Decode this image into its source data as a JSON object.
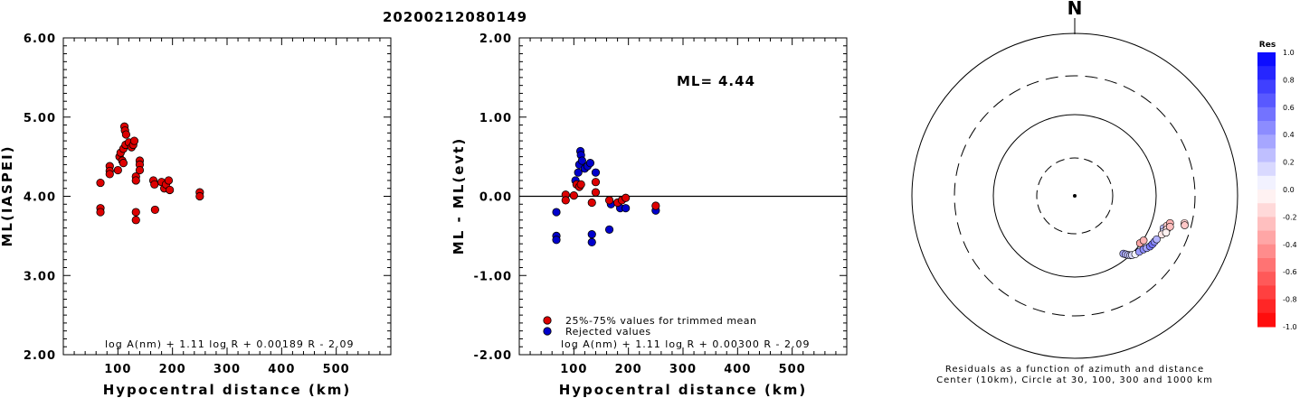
{
  "event_id": "20200212080149",
  "chart_data": [
    {
      "type": "scatter",
      "ylabel": "ML(IASPEI)",
      "xlabel": "Hypocentral distance (km)",
      "xlim": [
        0,
        600
      ],
      "ylim": [
        2.0,
        6.0
      ],
      "xticks": [
        "100",
        "200",
        "300",
        "400",
        "500"
      ],
      "yticks": [
        "2.00",
        "3.00",
        "4.00",
        "5.00",
        "6.00"
      ],
      "formula": "log A(nm) + 1.11 log R + 0.00189 R - 2.09",
      "points": [
        [
          68,
          4.17
        ],
        [
          68,
          3.85
        ],
        [
          68,
          3.8
        ],
        [
          85,
          4.38
        ],
        [
          85,
          4.32
        ],
        [
          85,
          4.28
        ],
        [
          100,
          4.33
        ],
        [
          103,
          4.5
        ],
        [
          105,
          4.55
        ],
        [
          108,
          4.45
        ],
        [
          110,
          4.6
        ],
        [
          110,
          4.42
        ],
        [
          112,
          4.88
        ],
        [
          113,
          4.83
        ],
        [
          115,
          4.78
        ],
        [
          114,
          4.65
        ],
        [
          120,
          4.68
        ],
        [
          125,
          4.62
        ],
        [
          128,
          4.65
        ],
        [
          130,
          4.7
        ],
        [
          133,
          4.25
        ],
        [
          133,
          4.2
        ],
        [
          133,
          3.8
        ],
        [
          133,
          3.7
        ],
        [
          140,
          4.45
        ],
        [
          140,
          4.4
        ],
        [
          140,
          4.33
        ],
        [
          165,
          4.2
        ],
        [
          167,
          4.15
        ],
        [
          168,
          3.83
        ],
        [
          180,
          4.18
        ],
        [
          185,
          4.1
        ],
        [
          188,
          4.15
        ],
        [
          193,
          4.2
        ],
        [
          195,
          4.08
        ],
        [
          250,
          4.05
        ],
        [
          250,
          4.0
        ]
      ]
    },
    {
      "type": "scatter",
      "ylabel": "ML - ML(evt)",
      "xlabel": "Hypocentral distance (km)",
      "xlim": [
        0,
        600
      ],
      "ylim": [
        -2.0,
        2.0
      ],
      "xticks": [
        "100",
        "200",
        "300",
        "400",
        "500"
      ],
      "yticks": [
        "-2.00",
        "-1.00",
        "0.00",
        "1.00",
        "2.00"
      ],
      "ml_label": "ML=",
      "ml_value": "4.44",
      "formula": "log A(nm) + 1.11 log R + 0.00300 R - 2.09",
      "reference_line": 0.0,
      "series": [
        {
          "name": "25%-75% values for trimmed mean",
          "color": "#dd0000",
          "points": [
            [
              85,
              0.02
            ],
            [
              85,
              -0.05
            ],
            [
              100,
              0.01
            ],
            [
              105,
              0.15
            ],
            [
              110,
              0.12
            ],
            [
              113,
              0.15
            ],
            [
              133,
              -0.08
            ],
            [
              140,
              0.18
            ],
            [
              140,
              0.05
            ],
            [
              165,
              -0.05
            ],
            [
              180,
              -0.08
            ],
            [
              188,
              -0.05
            ],
            [
              195,
              -0.02
            ],
            [
              250,
              -0.12
            ]
          ]
        },
        {
          "name": "Rejected values",
          "color": "#0000cc",
          "points": [
            [
              68,
              -0.2
            ],
            [
              68,
              -0.5
            ],
            [
              68,
              -0.55
            ],
            [
              103,
              0.2
            ],
            [
              108,
              0.3
            ],
            [
              110,
              0.4
            ],
            [
              112,
              0.57
            ],
            [
              113,
              0.52
            ],
            [
              115,
              0.45
            ],
            [
              120,
              0.35
            ],
            [
              125,
              0.38
            ],
            [
              130,
              0.42
            ],
            [
              133,
              -0.48
            ],
            [
              133,
              -0.58
            ],
            [
              140,
              0.3
            ],
            [
              165,
              -0.42
            ],
            [
              168,
              -0.1
            ],
            [
              185,
              -0.15
            ],
            [
              195,
              -0.15
            ],
            [
              250,
              -0.18
            ]
          ]
        }
      ]
    },
    {
      "type": "scatter",
      "north_label": "N",
      "caption_line1": "Residuals as a function of azimuth and distance",
      "caption_line2": "Center (10km), Circle at 30, 100, 300 and 1000 km",
      "colorbar_title": "Res",
      "colorbar_ticks": [
        "1.0",
        "0.8",
        "0.6",
        "0.4",
        "0.2",
        "0.0",
        "-0.2",
        "-0.4",
        "-0.6",
        "-0.8",
        "-1.0"
      ],
      "ring_distances_km": [
        30,
        100,
        300,
        1000
      ],
      "points": [
        {
          "az": 140,
          "dist": 85,
          "res": 0.35
        },
        {
          "az": 139,
          "dist": 90,
          "res": 0.3
        },
        {
          "az": 138,
          "dist": 95,
          "res": 0.25
        },
        {
          "az": 137,
          "dist": 100,
          "res": 0.2
        },
        {
          "az": 136,
          "dist": 103,
          "res": 0.15
        },
        {
          "az": 134,
          "dist": 108,
          "res": 0.05
        },
        {
          "az": 131,
          "dist": 112,
          "res": 0.4
        },
        {
          "az": 128,
          "dist": 118,
          "res": 0.45
        },
        {
          "az": 126,
          "dist": 124,
          "res": 0.35
        },
        {
          "az": 124,
          "dist": 130,
          "res": 0.5
        },
        {
          "az": 122,
          "dist": 133,
          "res": 0.55
        },
        {
          "az": 120,
          "dist": 135,
          "res": 0.45
        },
        {
          "az": 118,
          "dist": 138,
          "res": 0.3
        },
        {
          "az": 126,
          "dist": 98,
          "res": -0.35
        },
        {
          "az": 123,
          "dist": 102,
          "res": -0.3
        },
        {
          "az": 110,
          "dist": 145,
          "res": 0.25
        },
        {
          "az": 112,
          "dist": 150,
          "res": 0.15
        },
        {
          "az": 114,
          "dist": 148,
          "res": -0.1
        },
        {
          "az": 108,
          "dist": 155,
          "res": -0.2
        },
        {
          "az": 110,
          "dist": 160,
          "res": -0.15
        },
        {
          "az": 112,
          "dist": 162,
          "res": -0.05
        },
        {
          "az": 106,
          "dist": 165,
          "res": -0.3
        },
        {
          "az": 108,
          "dist": 170,
          "res": -0.25
        },
        {
          "az": 104,
          "dist": 245,
          "res": -0.18
        },
        {
          "az": 105,
          "dist": 250,
          "res": -0.22
        }
      ]
    }
  ]
}
